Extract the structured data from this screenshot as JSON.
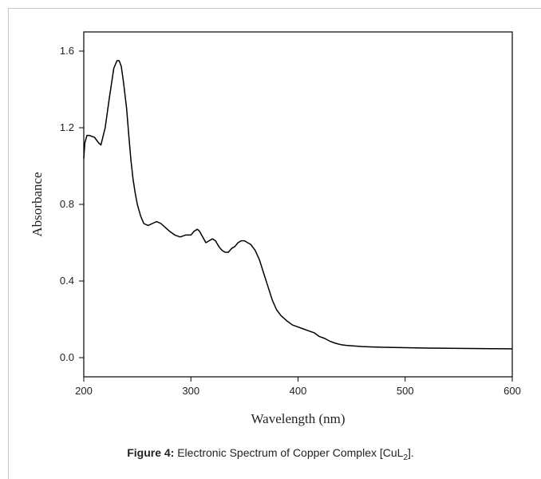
{
  "caption": {
    "label": "Figure 4:",
    "text_before": "Electronic Spectrum of Copper Complex [CuL",
    "subscript": "2",
    "text_after": "]."
  },
  "chart_data": {
    "type": "line",
    "title": "",
    "xlabel": "Wavelength (nm)",
    "ylabel": "Absorbance",
    "xlim": [
      200,
      600
    ],
    "ylim": [
      -0.1,
      1.7
    ],
    "xticks": [
      200,
      300,
      400,
      500,
      600
    ],
    "yticks": [
      0.0,
      0.4,
      0.8,
      1.2,
      1.6
    ],
    "ytick_labels": [
      "0.0",
      "0.4",
      "0.8",
      "1.2",
      "1.6"
    ],
    "grid": false,
    "legend": "none",
    "line_color": "#000000",
    "series": [
      {
        "x": [
          200,
          201,
          203,
          205,
          210,
          214,
          216,
          220,
          224,
          228,
          231,
          233,
          235,
          237,
          240,
          242,
          244,
          246,
          248,
          250,
          253,
          256,
          260,
          264,
          268,
          272,
          276,
          280,
          285,
          290,
          295,
          300,
          303,
          306,
          308,
          311,
          314,
          317,
          320,
          323,
          326,
          329,
          332,
          335,
          338,
          341,
          344,
          347,
          350,
          353,
          356,
          360,
          364,
          368,
          372,
          376,
          380,
          384,
          390,
          395,
          400,
          405,
          410,
          415,
          420,
          425,
          430,
          435,
          440,
          445,
          450,
          460,
          470,
          480,
          500,
          520,
          540,
          560,
          580,
          600
        ],
        "y": [
          1.04,
          1.12,
          1.16,
          1.16,
          1.15,
          1.12,
          1.11,
          1.2,
          1.36,
          1.51,
          1.55,
          1.55,
          1.52,
          1.44,
          1.3,
          1.16,
          1.03,
          0.93,
          0.86,
          0.8,
          0.74,
          0.7,
          0.69,
          0.7,
          0.71,
          0.7,
          0.68,
          0.66,
          0.64,
          0.63,
          0.64,
          0.64,
          0.66,
          0.67,
          0.66,
          0.63,
          0.6,
          0.61,
          0.62,
          0.61,
          0.58,
          0.56,
          0.55,
          0.55,
          0.57,
          0.58,
          0.6,
          0.61,
          0.61,
          0.6,
          0.59,
          0.56,
          0.51,
          0.44,
          0.37,
          0.3,
          0.25,
          0.22,
          0.19,
          0.17,
          0.16,
          0.15,
          0.14,
          0.13,
          0.11,
          0.1,
          0.085,
          0.075,
          0.068,
          0.064,
          0.062,
          0.058,
          0.056,
          0.054,
          0.052,
          0.05,
          0.049,
          0.048,
          0.047,
          0.046
        ]
      }
    ]
  }
}
